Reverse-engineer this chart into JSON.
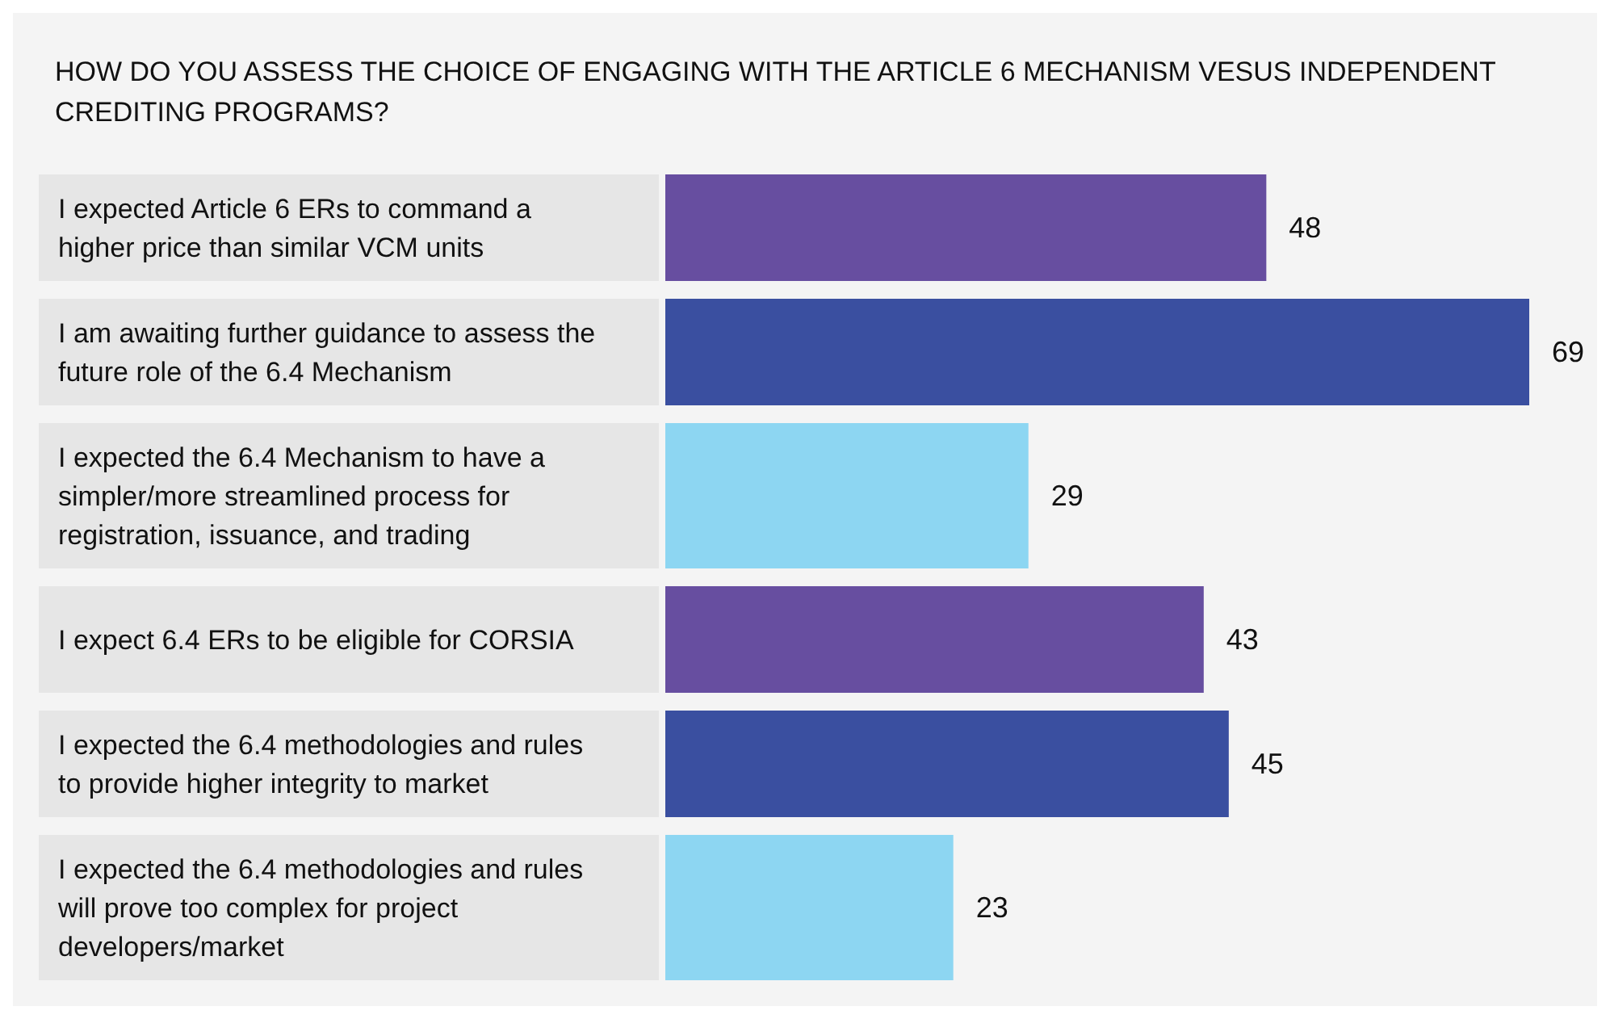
{
  "chart_data": {
    "type": "bar",
    "orientation": "horizontal",
    "title": "HOW DO YOU ASSESS THE CHOICE OF ENGAGING WITH THE ARTICLE 6 MECHANISM VESUS INDEPENDENT CREDITING PROGRAMS?",
    "categories": [
      "I expected Article 6 ERs to command a higher price than similar VCM units",
      "I am awaiting further guidance to assess the future role of the 6.4 Mechanism",
      "I expected the 6.4 Mechanism to have a simpler/more streamlined process for registration, issuance, and trading",
      "I expect 6.4 ERs to be eligible for CORSIA",
      "I expected the 6.4 methodologies and rules to provide higher integrity to market",
      "I expected the 6.4 methodologies and rules will prove too complex for project developers/market"
    ],
    "values": [
      48,
      69,
      29,
      43,
      45,
      23
    ],
    "colors": [
      "#674ea0",
      "#3a4fa0",
      "#8dd6f2",
      "#674ea0",
      "#3a4fa0",
      "#8dd6f2"
    ],
    "data_labels": true
  }
}
